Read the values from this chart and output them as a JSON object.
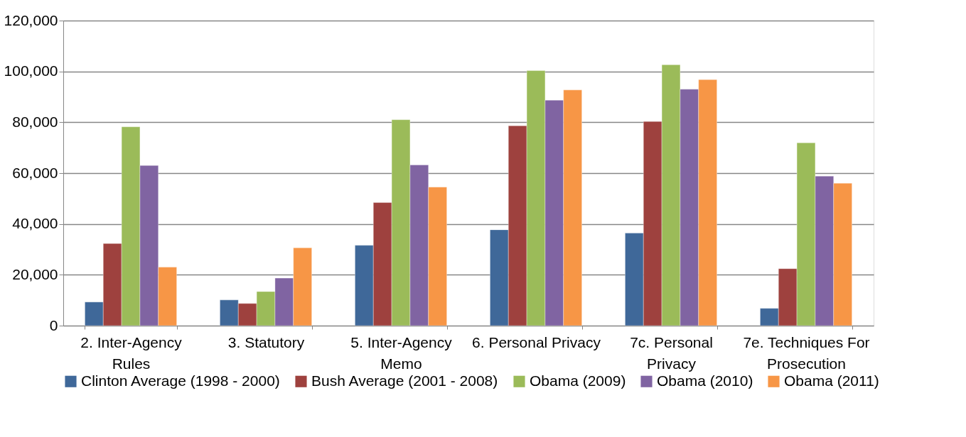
{
  "chart_data": {
    "type": "bar",
    "categories": [
      "2. Inter-Agency Rules",
      "3. Statutory",
      "5. Inter-Agency Memo",
      "6. Personal Privacy",
      "7c. Personal Privacy",
      "7e. Techniques For Prosecution"
    ],
    "series": [
      {
        "name": "Clinton Average (1998 - 2000)",
        "color": "#3f6899",
        "values": [
          9300,
          10100,
          31600,
          37700,
          36400,
          6800
        ]
      },
      {
        "name": "Bush Average (2001 - 2008)",
        "color": "#9e413e",
        "values": [
          32300,
          8700,
          48400,
          78600,
          80300,
          22400
        ]
      },
      {
        "name": "Obama (2009)",
        "color": "#9bbb59",
        "values": [
          78200,
          13400,
          81000,
          100300,
          102600,
          71900
        ]
      },
      {
        "name": "Obama (2010)",
        "color": "#8064a2",
        "values": [
          63000,
          18700,
          63200,
          88700,
          93000,
          58800
        ]
      },
      {
        "name": "Obama (2011)",
        "color": "#f79646",
        "values": [
          23000,
          30600,
          54500,
          92700,
          96800,
          56000
        ]
      }
    ],
    "ylim": [
      0,
      120000
    ],
    "yticks": [
      0,
      {
        "value": 20000,
        "label": "20,000"
      },
      {
        "value": 40000,
        "label": "40,000"
      },
      {
        "value": 60000,
        "label": "60,000"
      },
      {
        "value": 80000,
        "label": "80,000"
      },
      {
        "value": 100000,
        "label": "100,000"
      },
      {
        "value": 120000,
        "label": "120,000"
      }
    ],
    "grid": "y",
    "legend": "bottom"
  }
}
